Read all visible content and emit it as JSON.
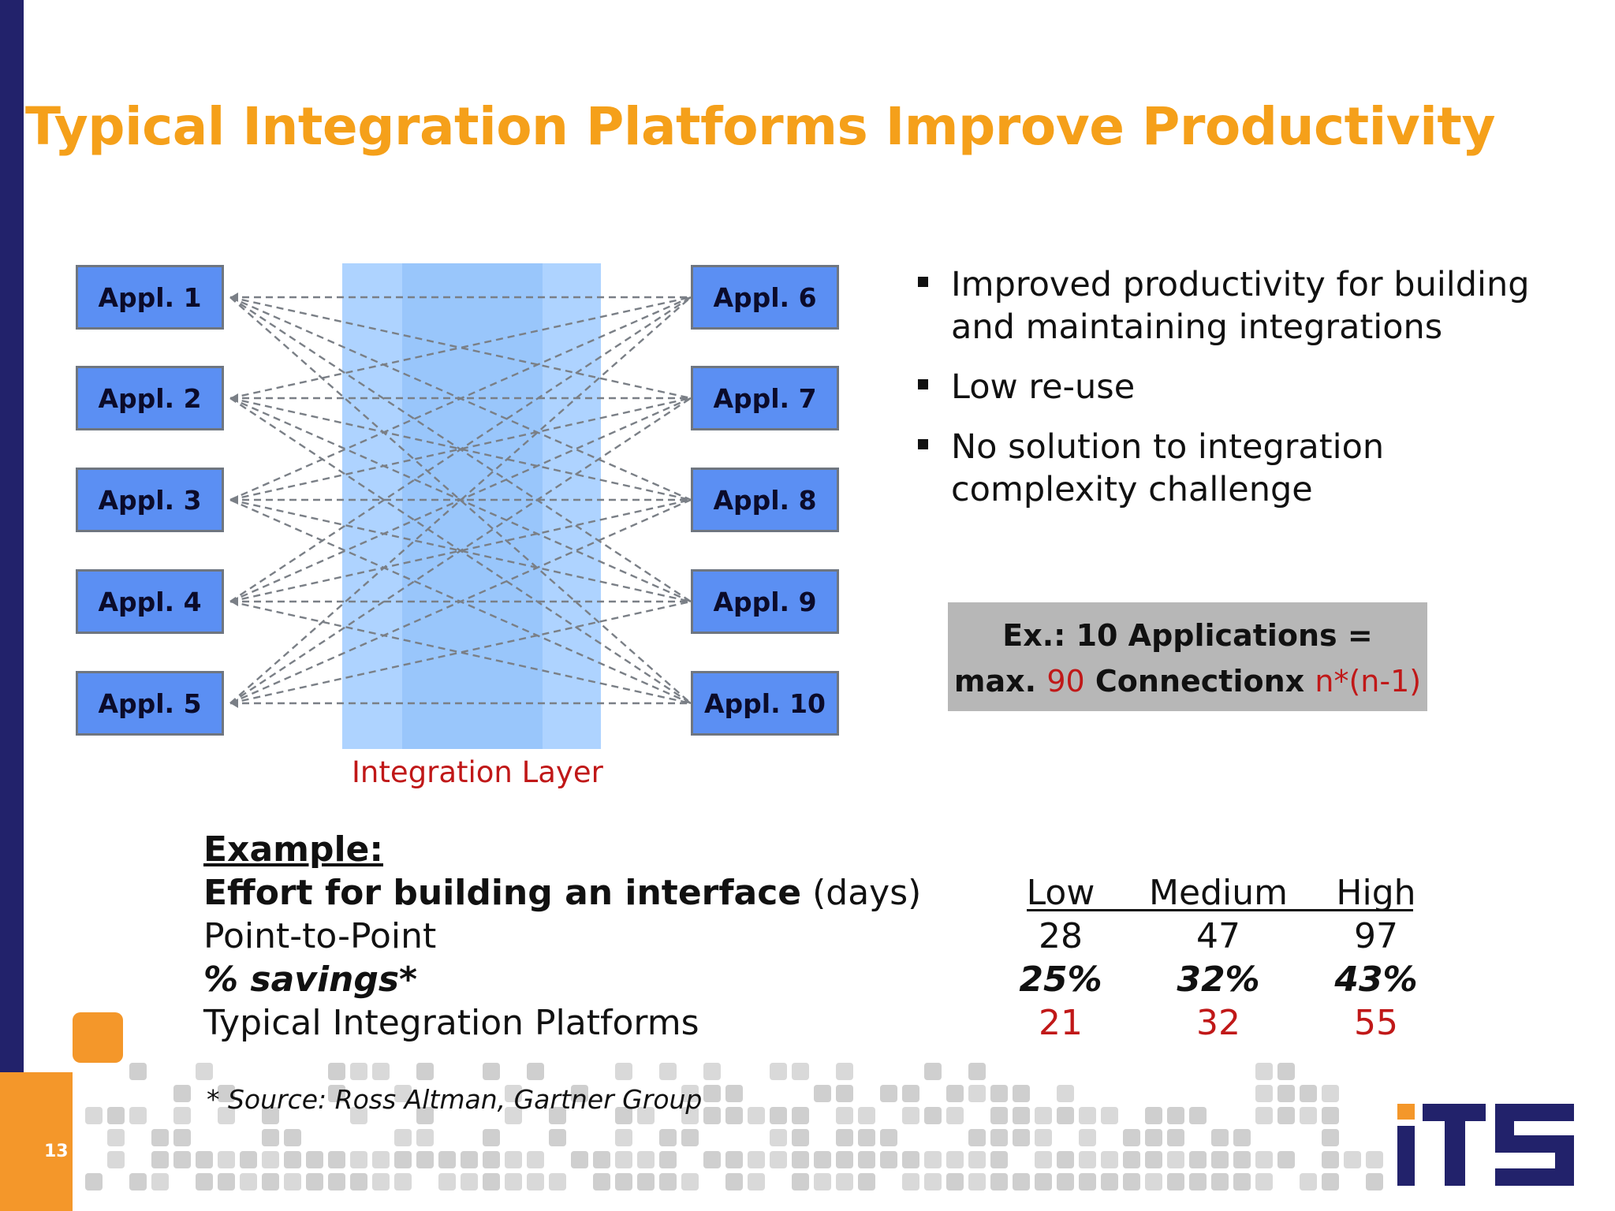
{
  "title": "Typical Integration Platforms Improve Productivity",
  "page_number": "13",
  "diagram": {
    "left_apps": [
      "Appl. 1",
      "Appl. 2",
      "Appl. 3",
      "Appl. 4",
      "Appl. 5"
    ],
    "right_apps": [
      "Appl. 6",
      "Appl. 7",
      "Appl. 8",
      "Appl. 9",
      "Appl. 10"
    ],
    "layer_label": "Integration Layer"
  },
  "bullets": [
    "Improved productivity for building and maintaining integrations",
    "Low re-use",
    "No solution to integration complexity challenge"
  ],
  "example_box": {
    "line1": "Ex.: 10 Applications =",
    "line2_prefix": "max. ",
    "line2_number": "90",
    "line2_word": " Connectionx ",
    "line2_formula": "n*(n-1)"
  },
  "effort_table": {
    "heading": "Example:",
    "subheading_bold": "Effort for building an interface",
    "subheading_unit": " (days)",
    "row_labels": [
      "Point-to-Point",
      "% savings*",
      "Typical Integration Platforms"
    ],
    "columns": [
      {
        "header": "Low",
        "point_to_point": "28",
        "savings": "25%",
        "platforms": "21"
      },
      {
        "header": "Medium",
        "point_to_point": "47",
        "savings": "32%",
        "platforms": "32"
      },
      {
        "header": "High",
        "point_to_point": "97",
        "savings": "43%",
        "platforms": "55"
      }
    ]
  },
  "source_note": "* Source: Ross Altman, Gartner Group",
  "logo_text": "iTS",
  "colors": {
    "title": "#f5a01a",
    "app_box": "#5b8ff3",
    "integration_layer": "#aed3ff",
    "accent_red": "#c01818",
    "left_bar": "#22226b",
    "logo": "#22226b"
  }
}
